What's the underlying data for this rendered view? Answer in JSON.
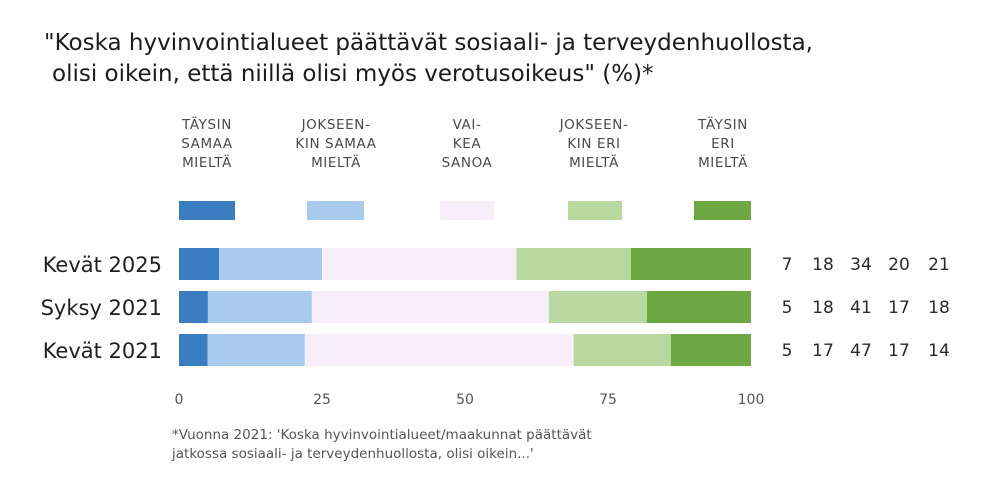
{
  "title_lines": [
    "\"Koska hyvinvointialueet päättävät sosiaali- ja terveydenhuollosta,",
    "olisi oikein, että niillä olisi myös verotusoikeus\" (%)*"
  ],
  "footnote_lines": [
    "*Vuonna 2021: 'Koska hyvinvointialueet/maakunnat päättävät",
    "jatkossa sosiaali- ja terveydenhuollosta, olisi oikein...'"
  ],
  "chart_data": {
    "type": "bar",
    "orientation": "horizontal",
    "stacked": true,
    "categories": [
      "Kevät 2025",
      "Syksy 2021",
      "Kevät 2021"
    ],
    "series": [
      {
        "name": "TÄYSIN SAMAA MIELTÄ",
        "name_lines": [
          "TÄYSIN",
          "SAMAA",
          "MIELTÄ"
        ],
        "color": "#3a7dc0",
        "values": [
          7,
          5,
          5
        ]
      },
      {
        "name": "JOKSEENKIN SAMAA MIELTÄ",
        "name_lines": [
          "JOKSEEN-",
          "KIN SAMAA",
          "MIELTÄ"
        ],
        "color": "#a9cbeb",
        "values": [
          18,
          18,
          17
        ]
      },
      {
        "name": "VAIKEA SANOA",
        "name_lines": [
          "VAI-",
          "KEA",
          "SANOA"
        ],
        "color": "#f6eef9",
        "values": [
          34,
          41,
          47
        ]
      },
      {
        "name": "JOKSEENKIN ERI MIELTÄ",
        "name_lines": [
          "JOKSEEN-",
          "KIN ERI",
          "MIELTÄ"
        ],
        "color": "#b9d8a0",
        "values": [
          20,
          17,
          17
        ]
      },
      {
        "name": "TÄYSIN ERI MIELTÄ",
        "name_lines": [
          "TÄYSIN",
          "ERI",
          "MIELTÄ"
        ],
        "color": "#6ea843",
        "values": [
          21,
          18,
          14
        ]
      }
    ],
    "xlim": [
      0,
      100
    ],
    "xticks": [
      0,
      25,
      50,
      75,
      100
    ],
    "grid": false,
    "legend_position": "top"
  }
}
